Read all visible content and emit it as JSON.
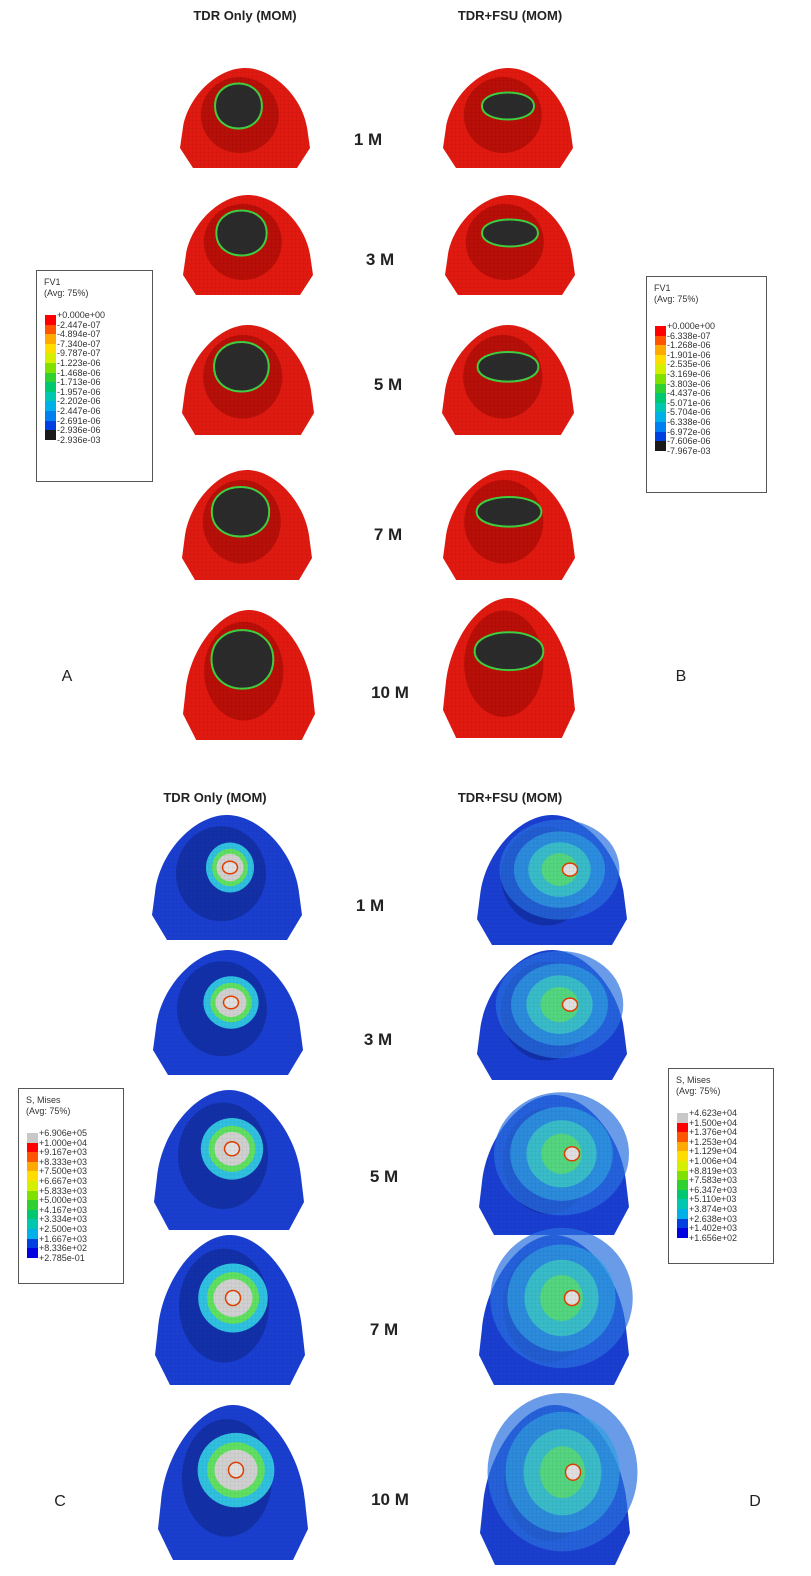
{
  "panels": {
    "top": {
      "left_header": "TDR Only (MOM)",
      "right_header": "TDR+FSU (MOM)",
      "left_letter": "A",
      "right_letter": "B"
    },
    "bottom": {
      "left_header": "TDR Only (MOM)",
      "right_header": "TDR+FSU (MOM)",
      "left_letter": "C",
      "right_letter": "D"
    }
  },
  "time_labels": [
    "1 M",
    "3 M",
    "5 M",
    "7 M",
    "10 M"
  ],
  "stray_letter": "B",
  "legends": {
    "A": {
      "title": "FV1",
      "subtitle": "(Avg: 75%)",
      "values": [
        "+0.000e+00",
        "-2.447e-07",
        "-4.894e-07",
        "-7.340e-07",
        "-9.787e-07",
        "-1.223e-06",
        "-1.468e-06",
        "-1.713e-06",
        "-1.957e-06",
        "-2.202e-06",
        "-2.447e-06",
        "-2.691e-06",
        "-2.936e-06",
        "-2.936e-03"
      ],
      "colors": [
        "#ff0000",
        "#ff5500",
        "#ffaa00",
        "#ffdd00",
        "#d4f000",
        "#80e000",
        "#30d030",
        "#00c870",
        "#00c8b0",
        "#00b0e8",
        "#0080f0",
        "#0040e0",
        "#1a1a1a"
      ]
    },
    "B": {
      "title": "FV1",
      "subtitle": "(Avg: 75%)",
      "values": [
        "+0.000e+00",
        "-6.338e-07",
        "-1.268e-06",
        "-1.901e-06",
        "-2.535e-06",
        "-3.169e-06",
        "-3.803e-06",
        "-4.437e-06",
        "-5.071e-06",
        "-5.704e-06",
        "-6.338e-06",
        "-6.972e-06",
        "-7.606e-06",
        "-7.967e-03"
      ],
      "colors": [
        "#ff0000",
        "#ff5500",
        "#ffaa00",
        "#ffdd00",
        "#d4f000",
        "#80e000",
        "#30d030",
        "#00c870",
        "#00c8b0",
        "#00b0e8",
        "#0080f0",
        "#0040e0",
        "#1a1a1a"
      ]
    },
    "C": {
      "title": "S, Mises",
      "subtitle": "(Avg: 75%)",
      "values": [
        "+6.906e+05",
        "+1.000e+04",
        "+9.167e+03",
        "+8.333e+03",
        "+7.500e+03",
        "+6.667e+03",
        "+5.833e+03",
        "+5.000e+03",
        "+4.167e+03",
        "+3.334e+03",
        "+2.500e+03",
        "+1.667e+03",
        "+8.336e+02",
        "+2.785e-01"
      ],
      "colors": [
        "#c8c8c8",
        "#ff0000",
        "#ff5500",
        "#ffaa00",
        "#ffdd00",
        "#d4f000",
        "#80e000",
        "#30d030",
        "#00c870",
        "#00c8b0",
        "#00b0e8",
        "#0040e0",
        "#0000e0"
      ]
    },
    "D": {
      "title": "S, Mises",
      "subtitle": "(Avg: 75%)",
      "values": [
        "+4.623e+04",
        "+1.500e+04",
        "+1.376e+04",
        "+1.253e+04",
        "+1.129e+04",
        "+1.006e+04",
        "+8.819e+03",
        "+7.583e+03",
        "+6.347e+03",
        "+5.110e+03",
        "+3.874e+03",
        "+2.638e+03",
        "+1.402e+03",
        "+1.656e+02"
      ],
      "colors": [
        "#c8c8c8",
        "#ff0000",
        "#ff5500",
        "#ffaa00",
        "#ffdd00",
        "#d4f000",
        "#80e000",
        "#30d030",
        "#00c870",
        "#00c8b0",
        "#00b0e8",
        "#0040e0",
        "#0000e0"
      ]
    }
  }
}
